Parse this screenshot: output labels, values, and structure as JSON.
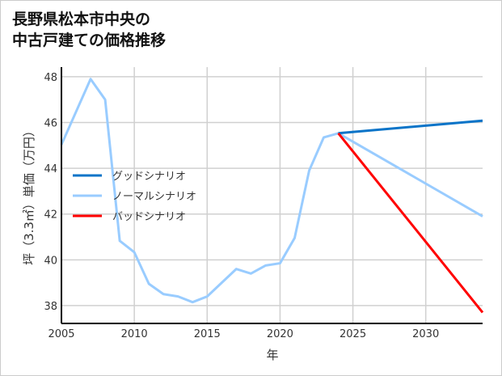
{
  "chart_data": {
    "type": "line",
    "title": [
      "長野県松本市中央の",
      "中古戸建ての価格推移"
    ],
    "xlabel": "年",
    "ylabel": "坪（3.3㎡）単価（万円）",
    "xlim": [
      2005,
      2033.9
    ],
    "ylim": [
      37.22,
      48.42
    ],
    "xticks": [
      2005,
      2010,
      2015,
      2020,
      2025,
      2030
    ],
    "yticks": [
      38,
      40,
      42,
      44,
      46,
      48
    ],
    "grid": true,
    "legend_position": "center-left",
    "series": [
      {
        "name": "グッドシナリオ",
        "color": "#0a74c8",
        "x": [
          2024,
          2033.9
        ],
        "y": [
          45.53,
          46.08
        ]
      },
      {
        "name": "ノーマルシナリオ",
        "color": "#99ccff",
        "x": [
          2005,
          2007,
          2008,
          2009,
          2010,
          2011,
          2012,
          2013,
          2014,
          2015,
          2016,
          2017,
          2018,
          2019,
          2020,
          2021,
          2022,
          2023,
          2024,
          2033.9
        ],
        "y": [
          45.03,
          47.9,
          47.0,
          40.83,
          40.33,
          38.95,
          38.5,
          38.4,
          38.15,
          38.4,
          39.0,
          39.6,
          39.4,
          39.75,
          39.85,
          40.95,
          43.9,
          45.35,
          45.53,
          41.9
        ]
      },
      {
        "name": "バッドシナリオ",
        "color": "#ff0000",
        "x": [
          2024,
          2033.9
        ],
        "y": [
          45.53,
          37.7
        ]
      }
    ]
  }
}
